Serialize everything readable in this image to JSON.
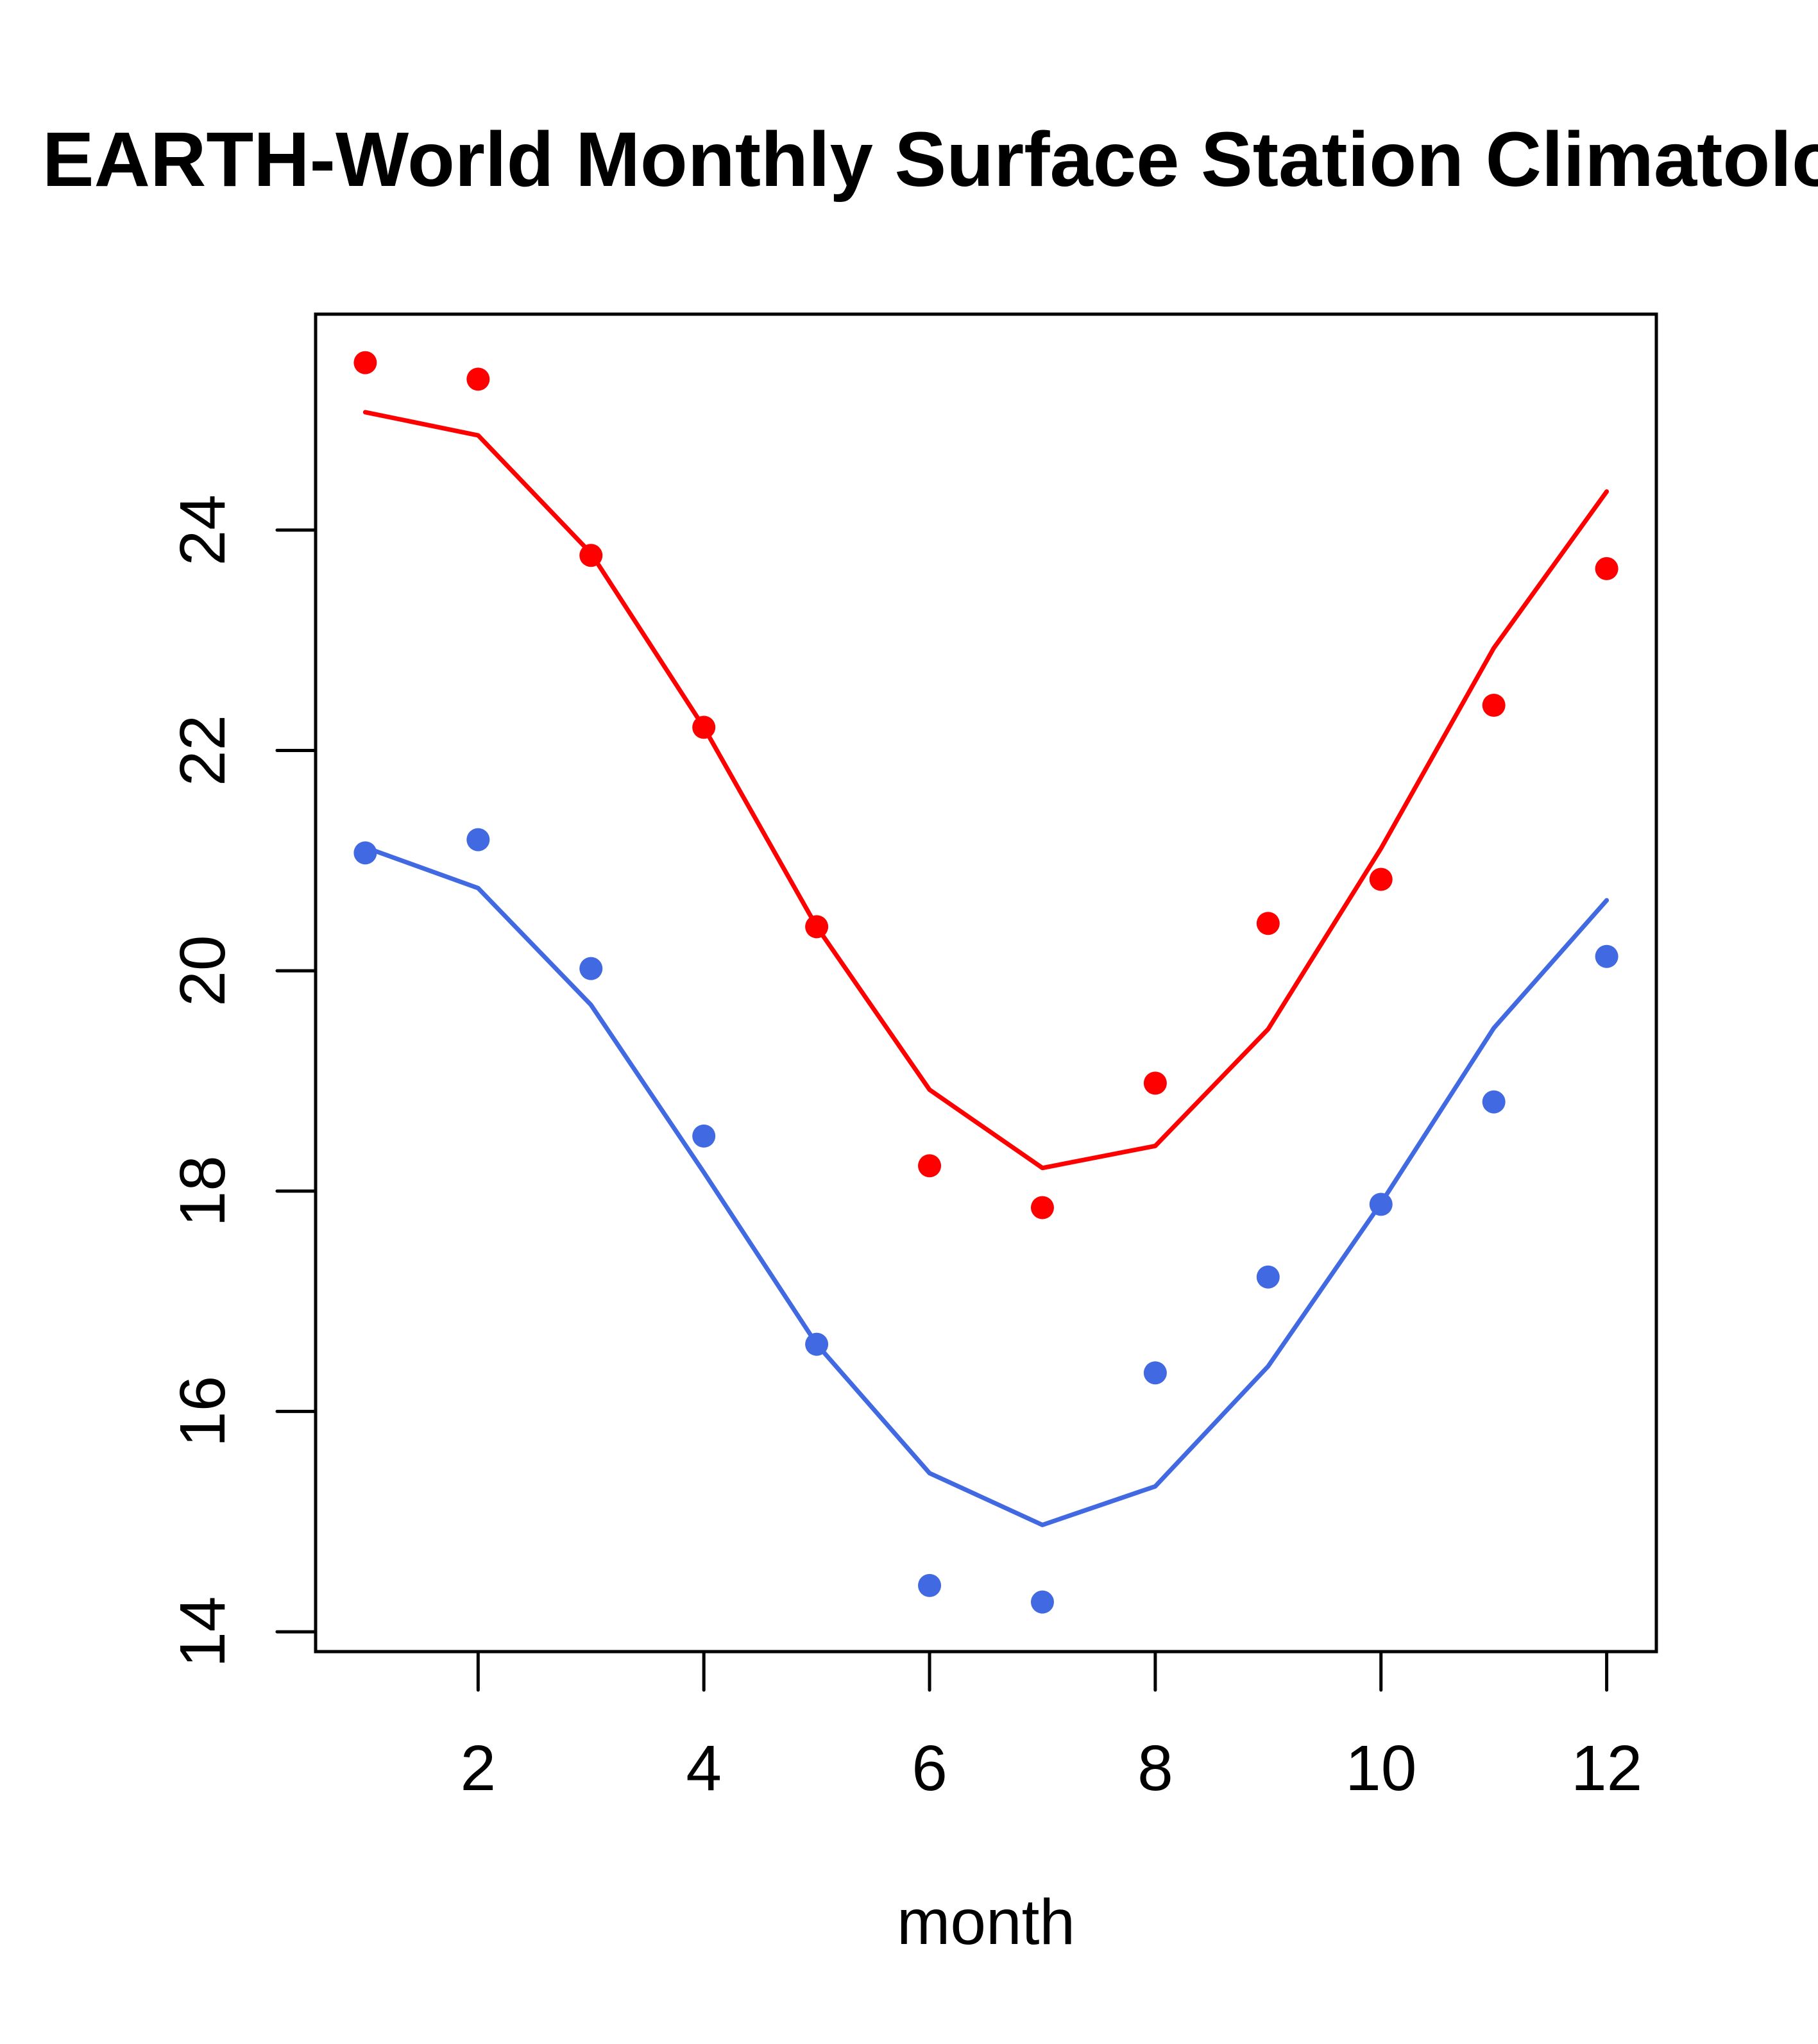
{
  "chart_data": {
    "type": "line",
    "title": "BEARTH-World Monthly Surface Station Climatology",
    "title_visible": "EARTH-World Monthly Surface Station Climatology",
    "xlabel": "month",
    "ylabel": "",
    "xlim": [
      0.56,
      12.44
    ],
    "ylim": [
      13.82,
      25.96
    ],
    "x_ticks": [
      2,
      4,
      6,
      8,
      10,
      12
    ],
    "x_tick_labels": [
      "2",
      "4",
      "6",
      "8",
      "10",
      "12"
    ],
    "y_ticks": [
      14,
      16,
      18,
      20,
      22,
      24
    ],
    "y_tick_labels": [
      "14",
      "16",
      "18",
      "20",
      "22",
      "24"
    ],
    "grid": false,
    "legend": null,
    "x": [
      1,
      2,
      3,
      4,
      5,
      6,
      7,
      8,
      9,
      10,
      11,
      12
    ],
    "series": [
      {
        "name": "red-points",
        "kind": "points",
        "color": "#FF0000",
        "values": [
          25.52,
          25.37,
          23.77,
          22.21,
          20.4,
          18.23,
          17.85,
          18.98,
          20.43,
          20.83,
          22.41,
          23.65
        ]
      },
      {
        "name": "red-line",
        "kind": "line",
        "color": "#FF0000",
        "values": [
          25.07,
          24.86,
          23.79,
          22.21,
          20.4,
          18.92,
          18.21,
          18.41,
          19.47,
          21.11,
          22.93,
          24.35
        ]
      },
      {
        "name": "blue-points",
        "kind": "points",
        "color": "#4169E1",
        "values": [
          21.07,
          21.19,
          20.02,
          18.5,
          16.61,
          14.42,
          14.27,
          16.35,
          17.22,
          17.88,
          18.81,
          20.13
        ]
      },
      {
        "name": "blue-line",
        "kind": "line",
        "color": "#4169E1",
        "values": [
          21.12,
          20.75,
          19.69,
          18.17,
          16.61,
          15.44,
          14.97,
          15.32,
          16.41,
          17.89,
          19.48,
          20.64
        ]
      }
    ]
  }
}
